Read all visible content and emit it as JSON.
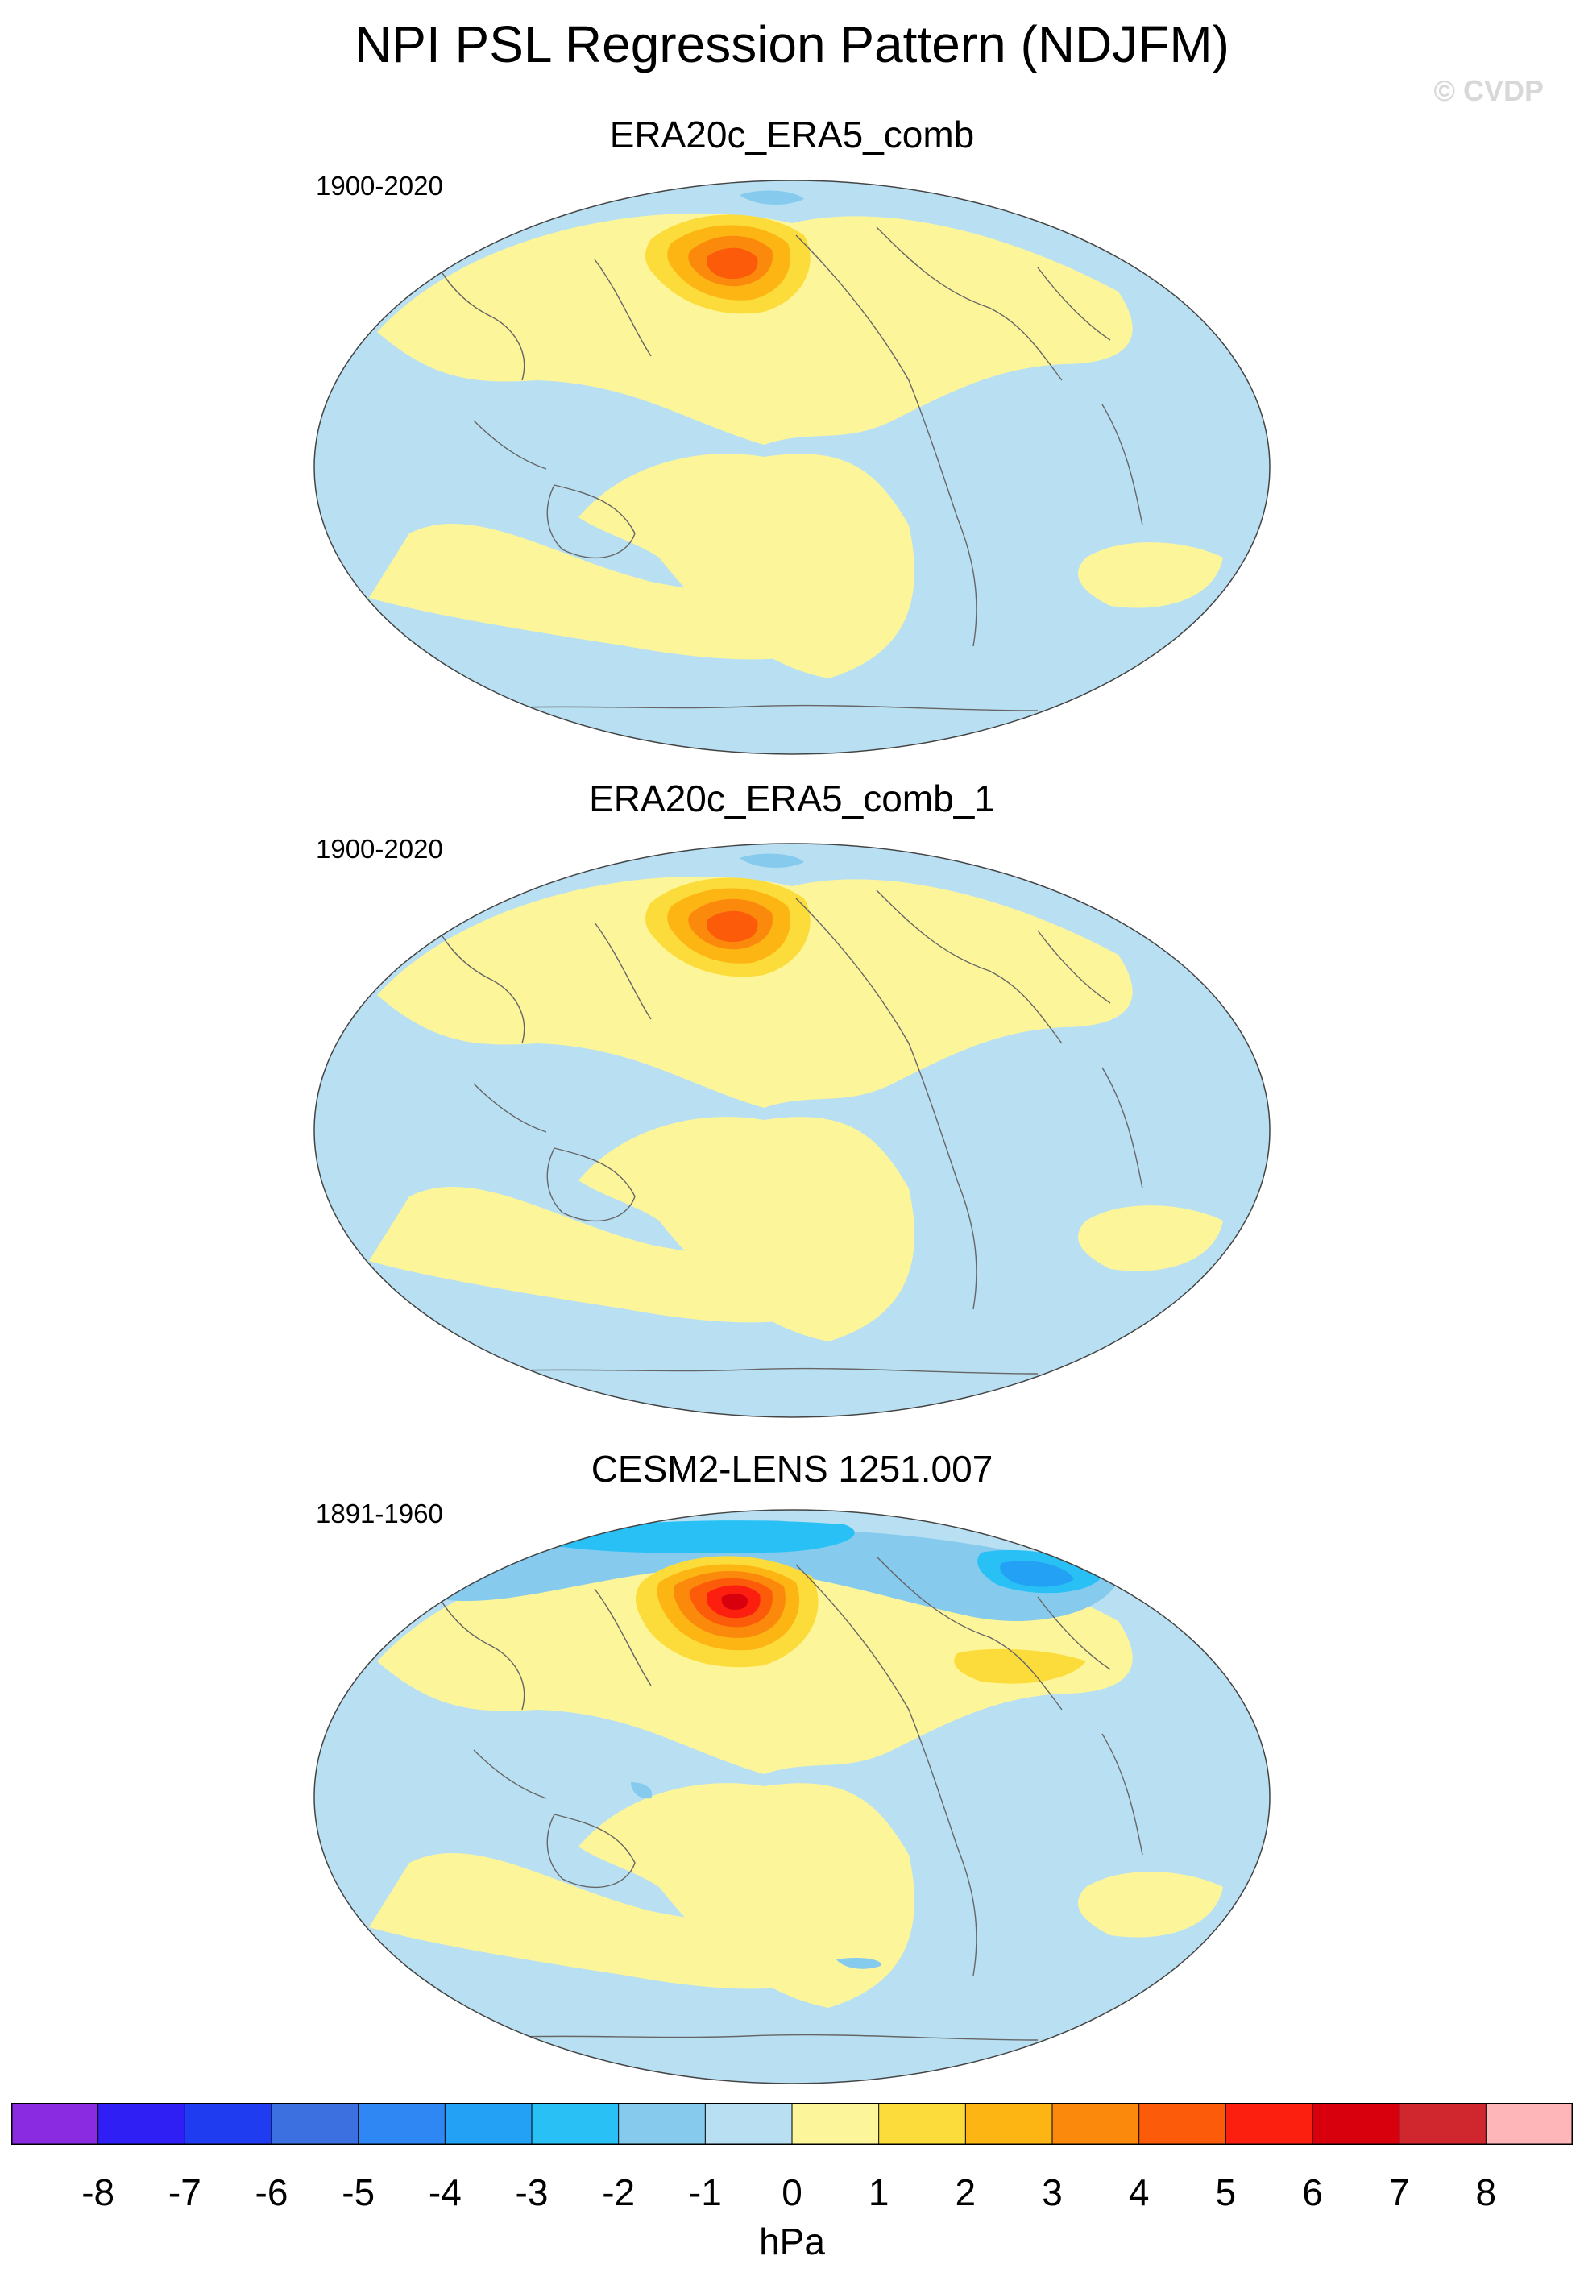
{
  "figure": {
    "title": "NPI PSL Regression Pattern (NDJFM)",
    "watermark": "© CVDP"
  },
  "panels": [
    {
      "title": "ERA20c_ERA5_comb",
      "years": "1900-2020",
      "variant": "obs"
    },
    {
      "title": "ERA20c_ERA5_comb_1",
      "years": "1900-2020",
      "variant": "obs"
    },
    {
      "title": "CESM2-LENS 1251.007",
      "years": "1891-1960",
      "variant": "model"
    }
  ],
  "colorbar": {
    "units": "hPa",
    "labels": [
      "-8",
      "-7",
      "-6",
      "-5",
      "-4",
      "-3",
      "-2",
      "-1",
      "0",
      "1",
      "2",
      "3",
      "4",
      "5",
      "6",
      "7",
      "8"
    ],
    "colors": [
      "#8a2be2",
      "#2f1ff5",
      "#1f3cf0",
      "#3c6fe0",
      "#2e87f2",
      "#23a2f5",
      "#29c1f5",
      "#86cbee",
      "#b9e0f2",
      "#fdf59a",
      "#fcdc3a",
      "#fdb514",
      "#fb8a0c",
      "#fc5b0a",
      "#fc1f10",
      "#d8000d",
      "#d0262e",
      "#ffb6b9"
    ]
  }
}
